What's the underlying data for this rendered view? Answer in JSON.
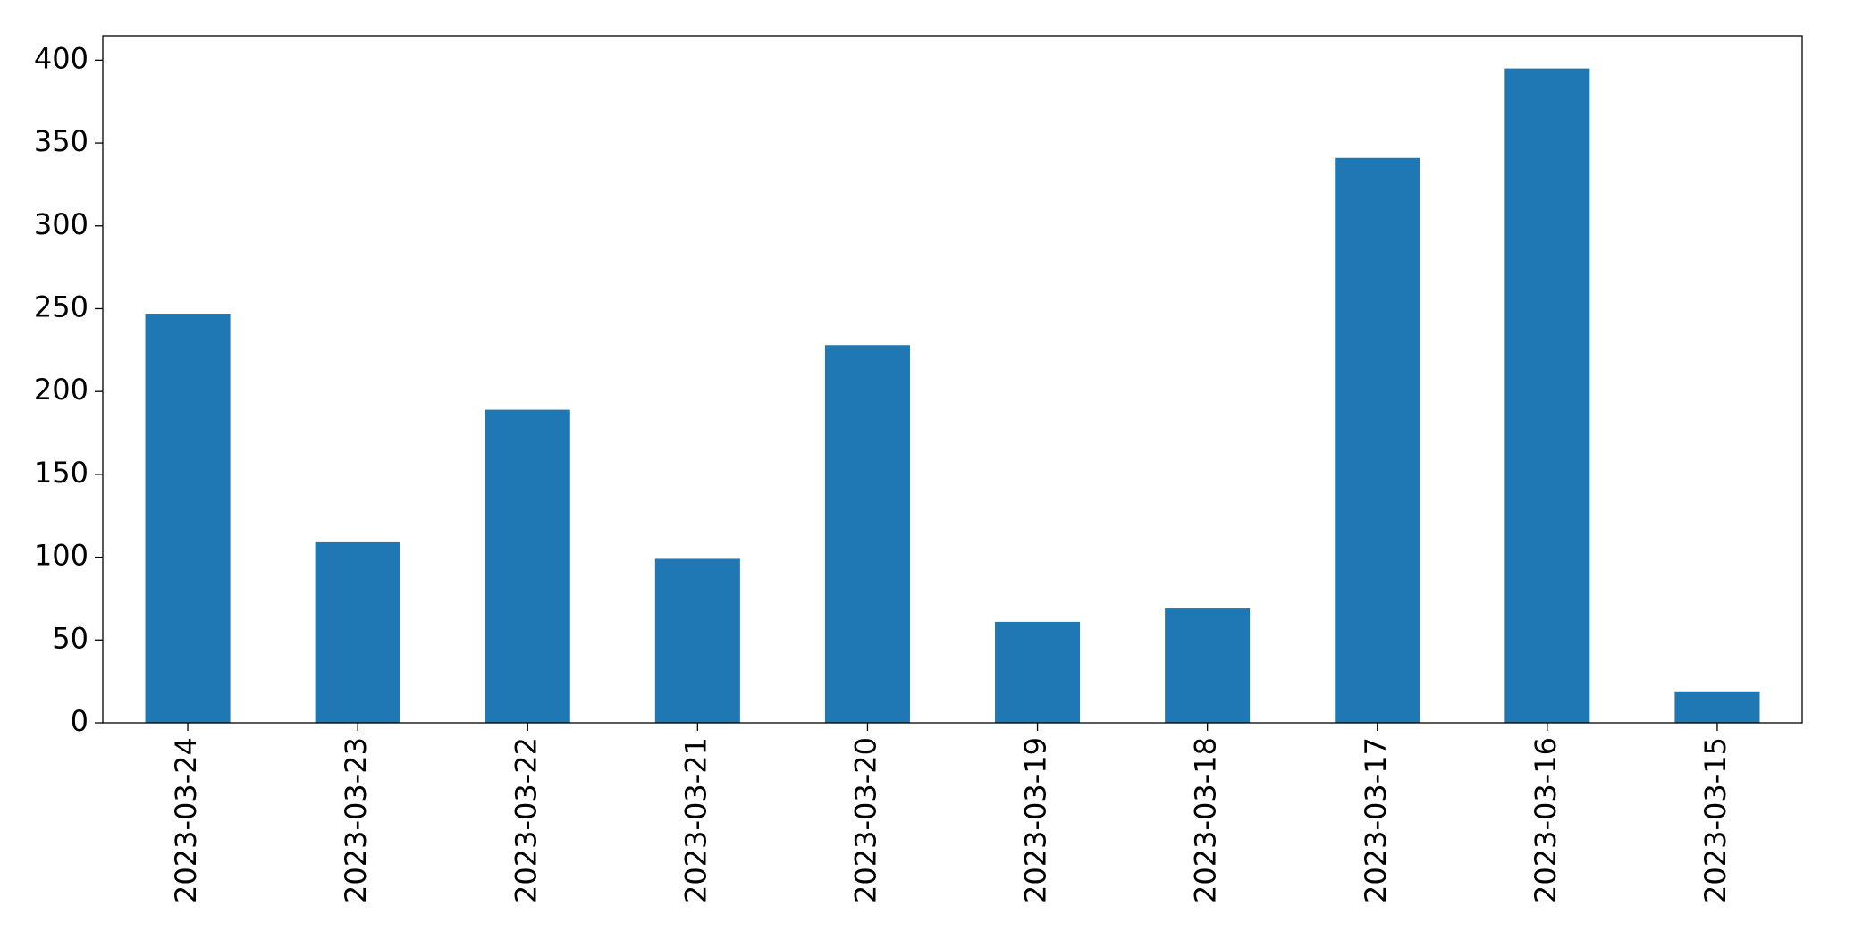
{
  "chart_data": {
    "type": "bar",
    "categories": [
      "2023-03-24",
      "2023-03-23",
      "2023-03-22",
      "2023-03-21",
      "2023-03-20",
      "2023-03-19",
      "2023-03-18",
      "2023-03-17",
      "2023-03-16",
      "2023-03-15"
    ],
    "values": [
      247,
      109,
      189,
      99,
      228,
      61,
      69,
      341,
      395,
      19
    ],
    "color": "#1f77b4",
    "ylim": [
      0,
      414.75
    ],
    "yticks": [
      0,
      50,
      100,
      150,
      200,
      250,
      300,
      350,
      400
    ],
    "grid": false
  }
}
